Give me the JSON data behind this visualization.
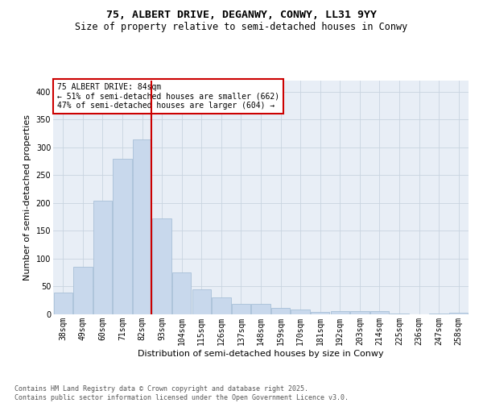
{
  "title1": "75, ALBERT DRIVE, DEGANWY, CONWY, LL31 9YY",
  "title2": "Size of property relative to semi-detached houses in Conwy",
  "xlabel": "Distribution of semi-detached houses by size in Conwy",
  "ylabel": "Number of semi-detached properties",
  "categories": [
    "38sqm",
    "49sqm",
    "60sqm",
    "71sqm",
    "82sqm",
    "93sqm",
    "104sqm",
    "115sqm",
    "126sqm",
    "137sqm",
    "148sqm",
    "159sqm",
    "170sqm",
    "181sqm",
    "192sqm",
    "203sqm",
    "214sqm",
    "225sqm",
    "236sqm",
    "247sqm",
    "258sqm"
  ],
  "values": [
    39,
    86,
    204,
    280,
    315,
    172,
    75,
    45,
    30,
    19,
    19,
    11,
    8,
    5,
    6,
    6,
    6,
    1,
    0,
    1,
    3
  ],
  "bar_color": "#c8d8ec",
  "bar_edge_color": "#a8c0d8",
  "property_bin_index": 4,
  "vline_color": "#cc0000",
  "annotation_text": "75 ALBERT DRIVE: 84sqm\n← 51% of semi-detached houses are smaller (662)\n47% of semi-detached houses are larger (604) →",
  "annotation_box_color": "#ffffff",
  "annotation_box_edge": "#cc0000",
  "ylim": [
    0,
    420
  ],
  "yticks": [
    0,
    50,
    100,
    150,
    200,
    250,
    300,
    350,
    400
  ],
  "grid_color": "#c8d4e0",
  "bg_color": "#e8eef6",
  "footer_text": "Contains HM Land Registry data © Crown copyright and database right 2025.\nContains public sector information licensed under the Open Government Licence v3.0.",
  "title1_fontsize": 9.5,
  "title2_fontsize": 8.5,
  "axis_label_fontsize": 8,
  "tick_fontsize": 7,
  "annotation_fontsize": 7,
  "footer_fontsize": 6
}
